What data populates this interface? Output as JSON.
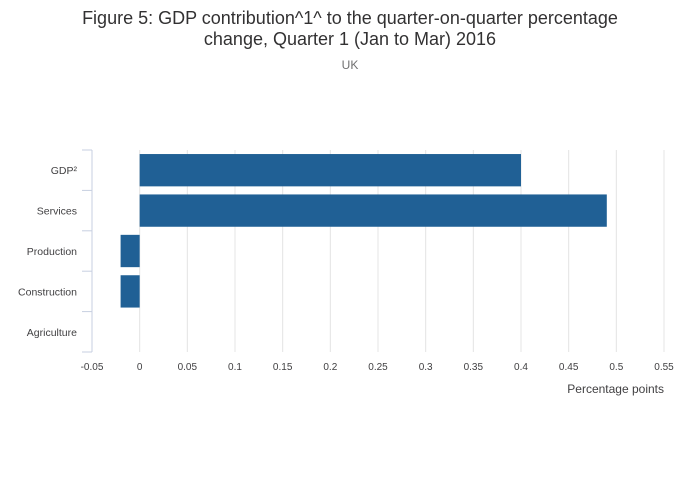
{
  "chart_data": {
    "type": "bar",
    "orientation": "horizontal",
    "title_lines": [
      "Figure 5: GDP contribution^1^ to the quarter-on-quarter percentage",
      "change, Quarter 1 (Jan to Mar) 2016"
    ],
    "subtitle": "UK",
    "categories": [
      "GDP²",
      "Services",
      "Production",
      "Construction",
      "Agriculture"
    ],
    "values": [
      0.4,
      0.49,
      -0.02,
      -0.02,
      0.0
    ],
    "xlabel": "Percentage points",
    "ylabel": "",
    "xlim": [
      -0.05,
      0.55
    ],
    "xticks": [
      "-0.05",
      "0",
      "0.05",
      "0.1",
      "0.15",
      "0.2",
      "0.25",
      "0.3",
      "0.35",
      "0.4",
      "0.45",
      "0.5",
      "0.55"
    ],
    "grid": true,
    "legend": "none",
    "bar_color": "#206095"
  }
}
